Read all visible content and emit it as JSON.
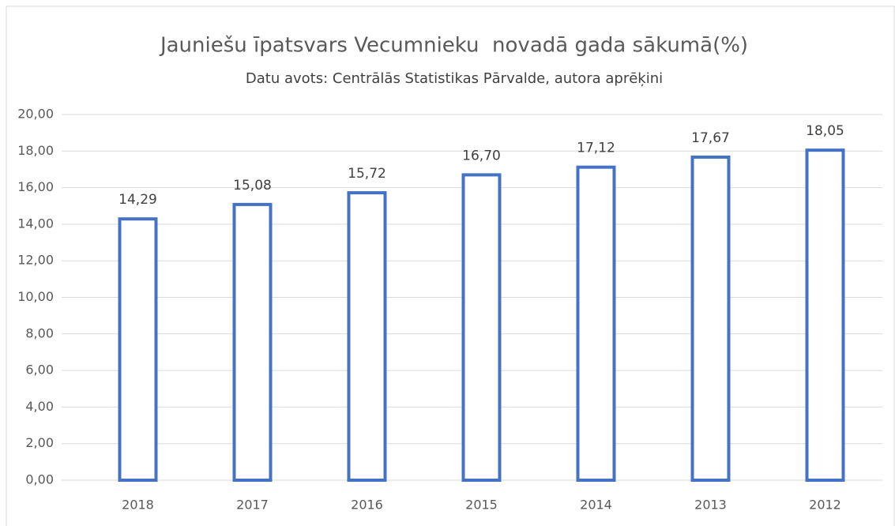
{
  "chart_data": {
    "type": "bar",
    "title": "Jauniešu īpatsvars Vecumnieku  novadā gada sākumā(%)",
    "subtitle": "Datu avots: Centrālās Statistikas Pārvalde, autora aprēķini",
    "categories": [
      "2018",
      "2017",
      "2016",
      "2015",
      "2014",
      "2013",
      "2012"
    ],
    "values": [
      14.29,
      15.08,
      15.72,
      16.7,
      17.12,
      17.67,
      18.05
    ],
    "value_labels": [
      "14,29",
      "15,08",
      "15,72",
      "16,70",
      "17,12",
      "17,67",
      "18,05"
    ],
    "color": "#4472c4",
    "ylim": [
      0,
      20
    ],
    "yticks": [
      {
        "value": 0,
        "label": "0,00"
      },
      {
        "value": 2,
        "label": "2,00"
      },
      {
        "value": 4,
        "label": "4,00"
      },
      {
        "value": 6,
        "label": "6,00"
      },
      {
        "value": 8,
        "label": "8,00"
      },
      {
        "value": 10,
        "label": "10,00"
      },
      {
        "value": 12,
        "label": "12,00"
      },
      {
        "value": 14,
        "label": "14,00"
      },
      {
        "value": 16,
        "label": "16,00"
      },
      {
        "value": 18,
        "label": "18,00"
      },
      {
        "value": 20,
        "label": "20,00"
      }
    ],
    "grid": true
  }
}
